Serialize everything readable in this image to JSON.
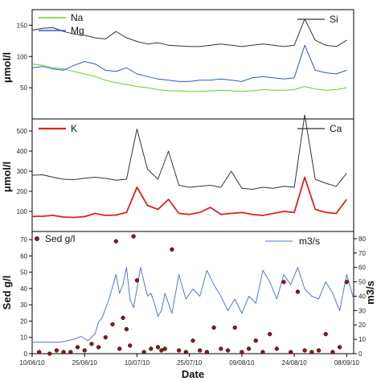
{
  "chart_data": [
    {
      "type": "line",
      "panel": "top",
      "ylabel": "μmol/l",
      "ylim": [
        0,
        175
      ],
      "yticks": [
        "50",
        "100",
        "150"
      ],
      "x": [
        0,
        3,
        6,
        9,
        12,
        15,
        18,
        21,
        24,
        27,
        30,
        33,
        36,
        39,
        42,
        45,
        48,
        51,
        54,
        57,
        60,
        63,
        66,
        69,
        72,
        75,
        78,
        81,
        84,
        87,
        90
      ],
      "series": [
        {
          "name": "Na",
          "color": "#66cc33",
          "values": [
            88,
            86,
            82,
            80,
            76,
            72,
            68,
            62,
            58,
            55,
            52,
            50,
            47,
            45,
            45,
            44,
            44,
            45,
            46,
            45,
            44,
            45,
            47,
            46,
            46,
            47,
            52,
            48,
            46,
            47,
            50
          ]
        },
        {
          "name": "Mg",
          "color": "#3355cc",
          "values": [
            82,
            84,
            80,
            78,
            86,
            92,
            88,
            78,
            76,
            82,
            72,
            68,
            64,
            62,
            60,
            60,
            62,
            62,
            64,
            62,
            60,
            66,
            68,
            66,
            64,
            66,
            118,
            78,
            74,
            72,
            78
          ]
        },
        {
          "name": "Si",
          "color": "#333333",
          "values": [
            142,
            145,
            146,
            140,
            136,
            134,
            130,
            128,
            140,
            130,
            124,
            120,
            122,
            118,
            117,
            116,
            116,
            118,
            120,
            118,
            116,
            118,
            120,
            118,
            116,
            118,
            160,
            126,
            118,
            116,
            126
          ]
        }
      ],
      "legend": [
        {
          "name": "Na",
          "color": "#66cc33"
        },
        {
          "name": "Mg",
          "color": "#3355cc"
        },
        {
          "name": "Si",
          "color": "#333333"
        }
      ]
    },
    {
      "type": "line",
      "panel": "middle",
      "ylabel": "μmol/l",
      "ylim": [
        0,
        560
      ],
      "yticks": [
        "100",
        "200",
        "300",
        "400",
        "500"
      ],
      "x": [
        0,
        3,
        6,
        9,
        12,
        15,
        18,
        21,
        24,
        27,
        30,
        33,
        36,
        39,
        42,
        45,
        48,
        51,
        54,
        57,
        60,
        63,
        66,
        69,
        72,
        75,
        78,
        81,
        84,
        87,
        90
      ],
      "series": [
        {
          "name": "K",
          "color": "#dd2222",
          "values": [
            75,
            76,
            80,
            72,
            70,
            74,
            90,
            80,
            82,
            95,
            220,
            130,
            110,
            160,
            90,
            85,
            95,
            120,
            85,
            90,
            95,
            85,
            80,
            90,
            100,
            95,
            270,
            110,
            95,
            90,
            160
          ]
        },
        {
          "name": "Ca",
          "color": "#333333",
          "values": [
            280,
            282,
            270,
            260,
            258,
            265,
            270,
            265,
            255,
            260,
            510,
            310,
            260,
            400,
            230,
            220,
            225,
            230,
            220,
            300,
            215,
            210,
            220,
            215,
            225,
            220,
            580,
            260,
            240,
            225,
            290
          ]
        }
      ],
      "legend": [
        {
          "name": "K",
          "color": "#dd2222"
        },
        {
          "name": "Ca",
          "color": "#333333"
        }
      ]
    },
    {
      "type": "line",
      "panel": "bottom",
      "ylabel": "Sed g/l",
      "ylabel_right": "m3/s",
      "xlabel": "Date",
      "ylim": [
        0,
        75
      ],
      "ylim_right": [
        0,
        85
      ],
      "yticks": [
        "0",
        "10",
        "20",
        "30",
        "40",
        "50",
        "60",
        "70"
      ],
      "yticks_right": [
        "0",
        "10",
        "20",
        "30",
        "40",
        "50",
        "60",
        "70",
        "80"
      ],
      "xticks": [
        "10/06/10",
        "25/06/10",
        "10/07/10",
        "25/07/10",
        "09/08/10",
        "24/08/10",
        "08/09/10"
      ],
      "xtick_days": [
        0,
        15,
        30,
        45,
        60,
        75,
        90
      ],
      "series": [
        {
          "name": "m3/s",
          "color": "#5577cc",
          "axis": "right",
          "x": [
            0,
            4,
            8,
            10,
            12,
            14,
            16,
            18,
            19,
            20,
            22,
            24,
            25,
            26,
            27,
            28,
            29,
            30,
            31,
            32,
            33,
            34,
            35,
            36,
            37,
            38,
            40,
            42,
            44,
            46,
            48,
            50,
            52,
            54,
            56,
            58,
            60,
            62,
            64,
            66,
            68,
            70,
            72,
            74,
            76,
            78,
            80,
            82,
            84,
            86,
            88,
            90,
            92
          ],
          "values": [
            8,
            8,
            8,
            9,
            10,
            12,
            9,
            14,
            22,
            25,
            38,
            55,
            42,
            48,
            60,
            38,
            32,
            45,
            60,
            50,
            40,
            42,
            35,
            26,
            30,
            42,
            28,
            55,
            38,
            45,
            40,
            58,
            48,
            40,
            30,
            38,
            28,
            40,
            35,
            58,
            50,
            38,
            55,
            48,
            60,
            45,
            40,
            38,
            50,
            42,
            30,
            55,
            38
          ]
        },
        {
          "name": "Sed g/l",
          "type": "scatter",
          "color": "#8b1a1a",
          "axis": "left",
          "x": [
            2,
            5,
            7,
            9,
            11,
            13,
            15,
            17,
            19,
            21,
            23,
            24,
            25,
            26,
            27,
            28,
            29,
            30,
            32,
            34,
            36,
            37,
            38,
            40,
            42,
            44,
            46,
            48,
            50,
            52,
            54,
            56,
            58,
            60,
            62,
            64,
            66,
            68,
            70,
            72,
            74,
            76,
            78,
            80,
            82,
            84,
            86,
            88,
            90
          ],
          "values": [
            1,
            0,
            2,
            1,
            1,
            4,
            2,
            6,
            4,
            10,
            18,
            69,
            3,
            22,
            15,
            5,
            72,
            45,
            1,
            3,
            4,
            2,
            3,
            64,
            2,
            1,
            8,
            2,
            1,
            16,
            3,
            2,
            16,
            1,
            3,
            8,
            1,
            12,
            3,
            44,
            1,
            38,
            2,
            1,
            2,
            12,
            1,
            4,
            44
          ]
        }
      ],
      "legend": [
        {
          "name": "Sed g/l",
          "color": "#8b1a1a"
        },
        {
          "name": "m3/s",
          "color": "#5577cc"
        }
      ]
    }
  ]
}
